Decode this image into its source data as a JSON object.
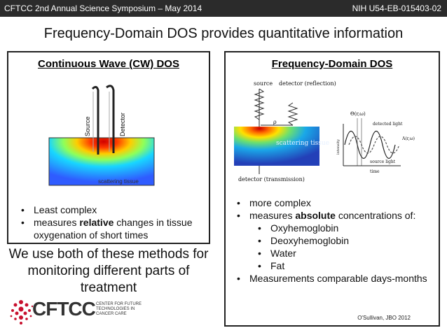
{
  "header": {
    "left": "CFTCC 2nd Annual Science Symposium – May 2014",
    "right": "NIH U54-EB-015403-02"
  },
  "slide": {
    "title": "Frequency-Domain DOS provides quantitative information"
  },
  "left_panel": {
    "heading": "Continuous Wave (CW) DOS",
    "diagram": {
      "source_label": "Source",
      "detector_label": "Detector",
      "tissue_label": "scattering tissue"
    },
    "bullets": [
      {
        "text": "Least complex"
      },
      {
        "prefix": "measures ",
        "bold": "relative",
        "suffix": " changes in tissue oxygenation of short times"
      }
    ]
  },
  "bottom_text": "We use both of these methods for monitoring different parts of treatment",
  "right_panel": {
    "heading": "Frequency-Domain DOS",
    "diagram": {
      "source_label": "source",
      "detector_reflection": "detector (reflection)",
      "detector_transmission": "detector (transmission)",
      "tissue_label": "scattering tissue",
      "rho_label": "ρ",
      "theta_label": "Θ(r,ω)",
      "detected_light": "detected light",
      "amplitude_label": "A(r,ω)",
      "source_light": "source light",
      "intensity_axis": "intensity",
      "time_axis": "time"
    },
    "bullets": {
      "b1": "more complex",
      "b2_prefix": "measures ",
      "b2_bold": "absolute",
      "b2_suffix": " concentrations of:",
      "sub": [
        "Oxyhemoglobin",
        "Deoxyhemoglobin",
        "Water",
        "Fat"
      ],
      "b3": "Measurements comparable days-months"
    },
    "citation": "O'Sullivan, JBO 2012"
  },
  "logo": {
    "text": "CFTCC",
    "subtitle": "CENTER FOR FUTURE TECHNOLOGIES IN CANCER CARE"
  }
}
